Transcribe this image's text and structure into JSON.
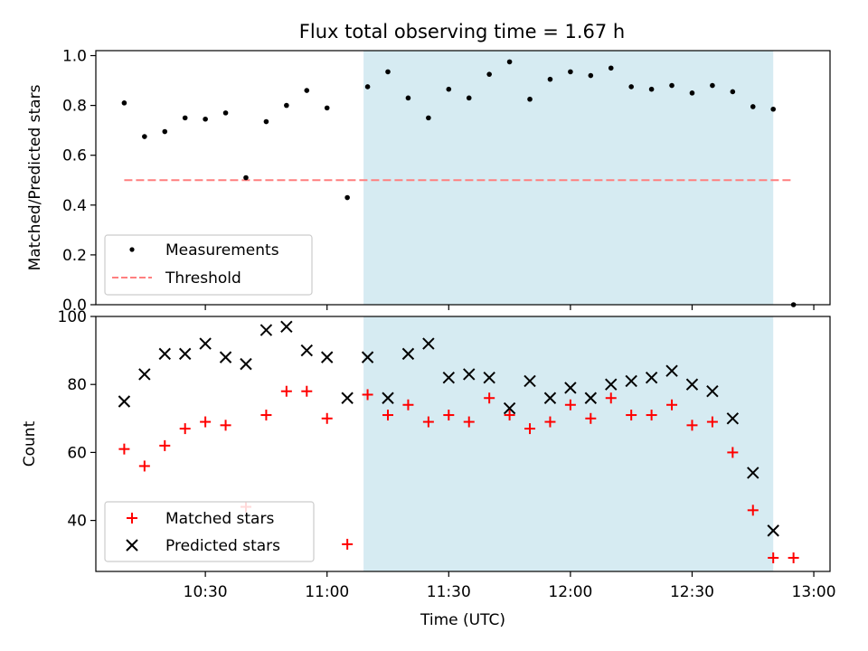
{
  "chart_data": [
    {
      "type": "scatter",
      "title": "Flux total observing time = 1.67 h",
      "xlabel": "",
      "ylabel": "Matched/Predicted stars",
      "ylim": [
        0,
        1.02
      ],
      "yticks": [
        "0.0",
        "0.2",
        "0.4",
        "0.6",
        "0.8",
        "1.0"
      ],
      "legend_position": "lower-left",
      "highlight_span": {
        "start": "11:09",
        "end": "12:50",
        "color": "#add8e6"
      },
      "series": [
        {
          "name": "Measurements",
          "marker": "dot",
          "color": "#000000",
          "points": [
            [
              "10:10",
              0.81
            ],
            [
              "10:15",
              0.675
            ],
            [
              "10:20",
              0.695
            ],
            [
              "10:25",
              0.75
            ],
            [
              "10:30",
              0.745
            ],
            [
              "10:35",
              0.77
            ],
            [
              "10:40",
              0.51
            ],
            [
              "10:45",
              0.735
            ],
            [
              "10:50",
              0.8
            ],
            [
              "10:55",
              0.86
            ],
            [
              "11:00",
              0.79
            ],
            [
              "11:05",
              0.43
            ],
            [
              "11:10",
              0.875
            ],
            [
              "11:15",
              0.935
            ],
            [
              "11:20",
              0.83
            ],
            [
              "11:25",
              0.75
            ],
            [
              "11:30",
              0.865
            ],
            [
              "11:35",
              0.83
            ],
            [
              "11:40",
              0.925
            ],
            [
              "11:45",
              0.975
            ],
            [
              "11:50",
              0.825
            ],
            [
              "11:55",
              0.905
            ],
            [
              "12:00",
              0.935
            ],
            [
              "12:05",
              0.92
            ],
            [
              "12:10",
              0.95
            ],
            [
              "12:15",
              0.875
            ],
            [
              "12:20",
              0.865
            ],
            [
              "12:25",
              0.88
            ],
            [
              "12:30",
              0.85
            ],
            [
              "12:35",
              0.88
            ],
            [
              "12:40",
              0.855
            ],
            [
              "12:45",
              0.795
            ],
            [
              "12:50",
              0.785
            ],
            [
              "12:55",
              0.0
            ]
          ]
        },
        {
          "name": "Threshold",
          "marker": "dashed-line",
          "color": "#ff7f7f",
          "points": [
            [
              "10:10",
              0.5
            ],
            [
              "12:55",
              0.5
            ]
          ]
        }
      ]
    },
    {
      "type": "scatter",
      "title": "",
      "xlabel": "Time (UTC)",
      "ylabel": "Count",
      "ylim": [
        25,
        100
      ],
      "yticks": [
        "40",
        "60",
        "80",
        "100"
      ],
      "xticks": [
        "10:30",
        "11:00",
        "11:30",
        "12:00",
        "12:30",
        "13:00"
      ],
      "legend_position": "lower-left",
      "highlight_span": {
        "start": "11:09",
        "end": "12:50",
        "color": "#add8e6"
      },
      "series": [
        {
          "name": "Matched stars",
          "marker": "plus",
          "color": "#ff0000",
          "points": [
            [
              "10:10",
              61
            ],
            [
              "10:15",
              56
            ],
            [
              "10:20",
              62
            ],
            [
              "10:25",
              67
            ],
            [
              "10:30",
              69
            ],
            [
              "10:35",
              68
            ],
            [
              "10:40",
              44
            ],
            [
              "10:45",
              71
            ],
            [
              "10:50",
              78
            ],
            [
              "10:55",
              78
            ],
            [
              "11:00",
              70
            ],
            [
              "11:05",
              33
            ],
            [
              "11:10",
              77
            ],
            [
              "11:15",
              71
            ],
            [
              "11:20",
              74
            ],
            [
              "11:25",
              69
            ],
            [
              "11:30",
              71
            ],
            [
              "11:35",
              69
            ],
            [
              "11:40",
              76
            ],
            [
              "11:45",
              71
            ],
            [
              "11:50",
              67
            ],
            [
              "11:55",
              69
            ],
            [
              "12:00",
              74
            ],
            [
              "12:05",
              70
            ],
            [
              "12:10",
              76
            ],
            [
              "12:15",
              71
            ],
            [
              "12:20",
              71
            ],
            [
              "12:25",
              74
            ],
            [
              "12:30",
              68
            ],
            [
              "12:35",
              69
            ],
            [
              "12:40",
              60
            ],
            [
              "12:45",
              43
            ],
            [
              "12:50",
              29
            ],
            [
              "12:55",
              29
            ]
          ]
        },
        {
          "name": "Predicted stars",
          "marker": "x",
          "color": "#000000",
          "points": [
            [
              "10:10",
              75
            ],
            [
              "10:15",
              83
            ],
            [
              "10:20",
              89
            ],
            [
              "10:25",
              89
            ],
            [
              "10:30",
              92
            ],
            [
              "10:35",
              88
            ],
            [
              "10:40",
              86
            ],
            [
              "10:45",
              96
            ],
            [
              "10:50",
              97
            ],
            [
              "10:55",
              90
            ],
            [
              "11:00",
              88
            ],
            [
              "11:05",
              76
            ],
            [
              "11:10",
              88
            ],
            [
              "11:15",
              76
            ],
            [
              "11:20",
              89
            ],
            [
              "11:25",
              92
            ],
            [
              "11:30",
              82
            ],
            [
              "11:35",
              83
            ],
            [
              "11:40",
              82
            ],
            [
              "11:45",
              73
            ],
            [
              "11:50",
              81
            ],
            [
              "11:55",
              76
            ],
            [
              "12:00",
              79
            ],
            [
              "12:05",
              76
            ],
            [
              "12:10",
              80
            ],
            [
              "12:15",
              81
            ],
            [
              "12:20",
              82
            ],
            [
              "12:25",
              84
            ],
            [
              "12:30",
              80
            ],
            [
              "12:35",
              78
            ],
            [
              "12:40",
              70
            ],
            [
              "12:45",
              54
            ],
            [
              "12:50",
              37
            ]
          ]
        }
      ]
    }
  ]
}
